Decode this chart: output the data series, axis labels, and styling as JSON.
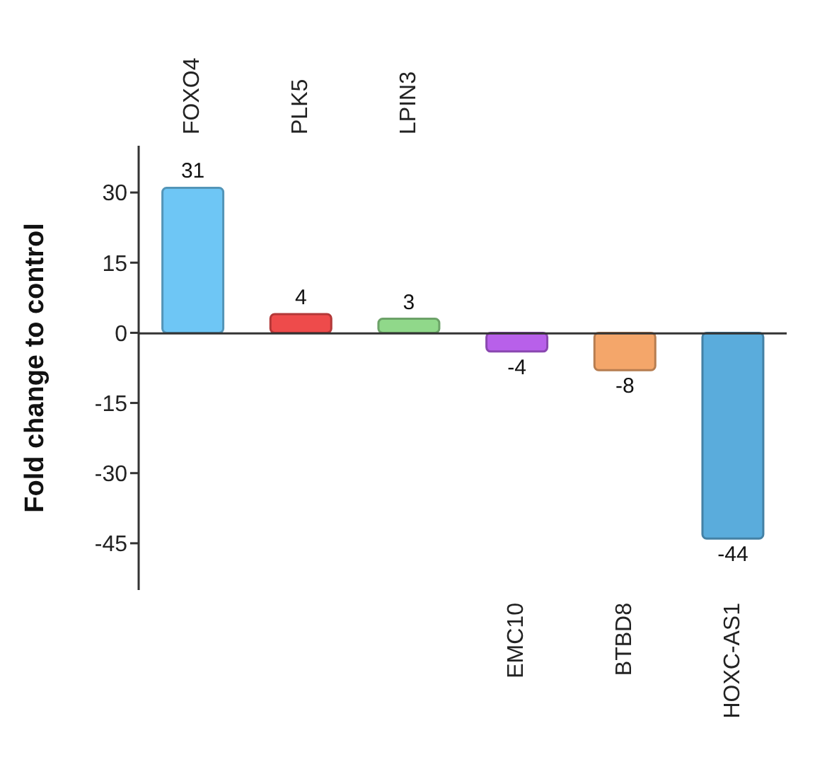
{
  "chart_data": {
    "type": "bar",
    "ylabel": "Fold change to control",
    "categories": [
      "FOXO4",
      "PLK5",
      "LPIN3",
      "EMC10",
      "BTBD8",
      "HOXC-AS1"
    ],
    "values": [
      31,
      4,
      3,
      -4,
      -8,
      -44
    ],
    "colors": [
      "#6ec6f5",
      "#ee4b4b",
      "#90d88a",
      "#b860ea",
      "#f4a66a",
      "#5aacdc"
    ],
    "ylim": [
      -55,
      40
    ],
    "yticks": [
      30,
      15,
      0,
      -15,
      -30,
      -45
    ],
    "data_labels": true,
    "legend": false
  }
}
